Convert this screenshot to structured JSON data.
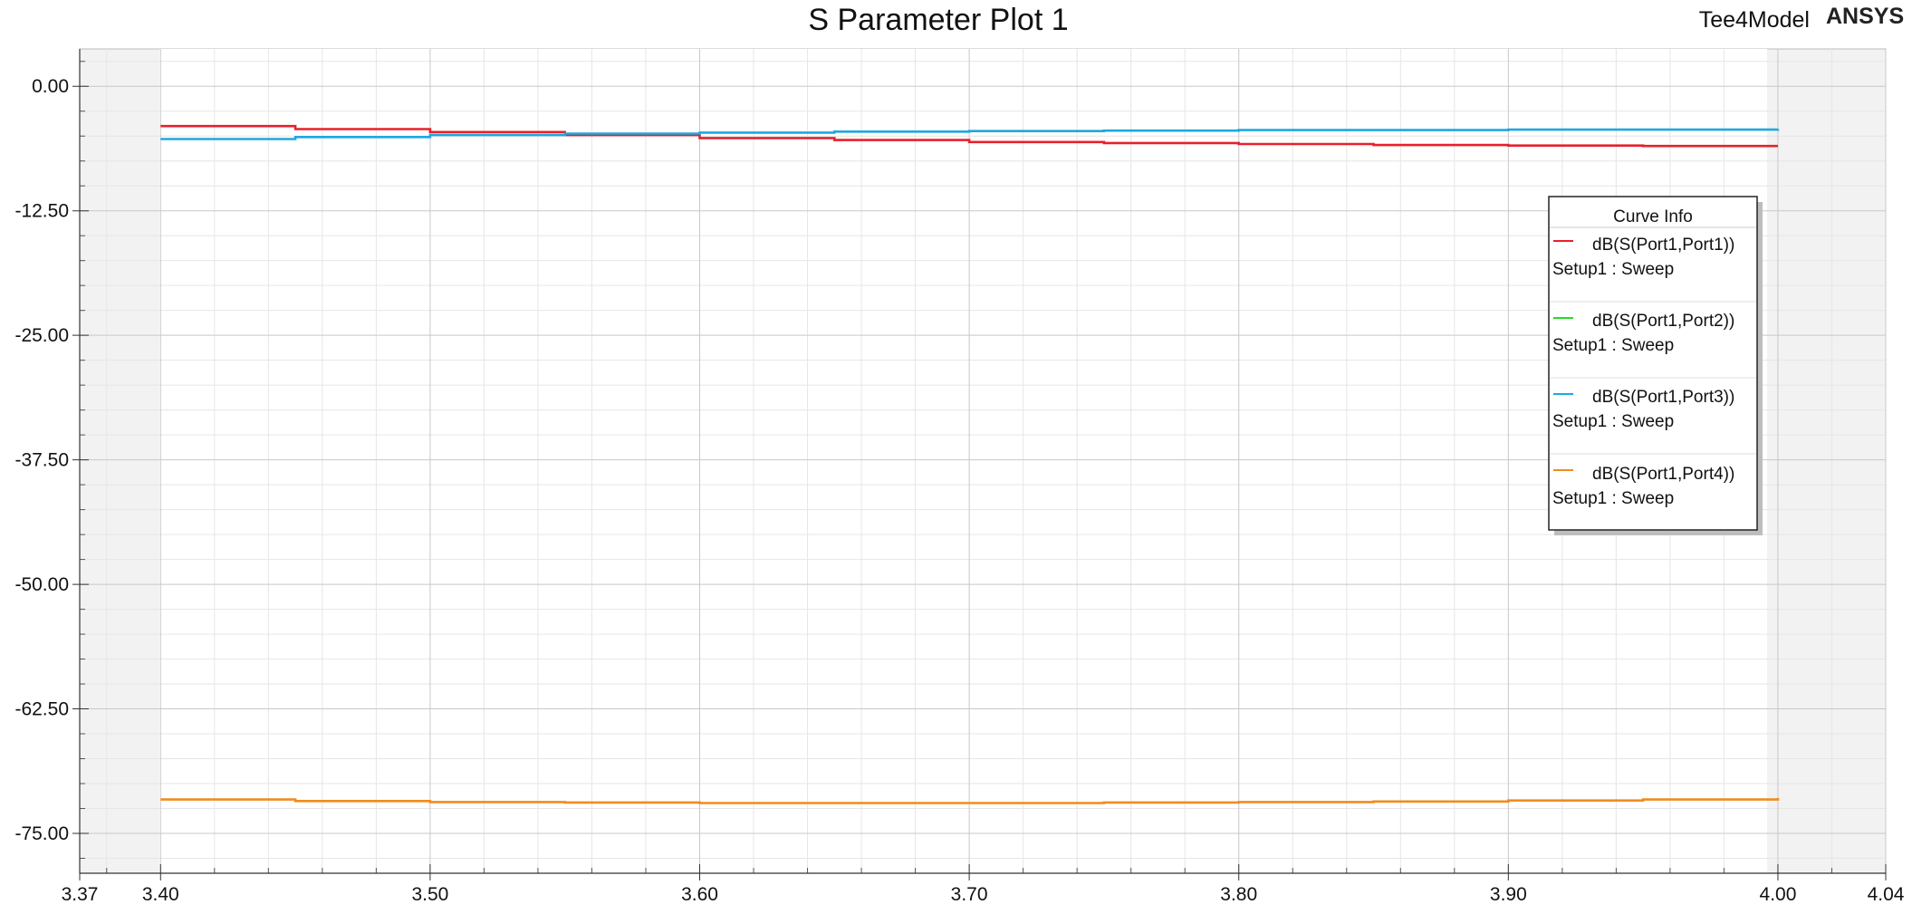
{
  "header": {
    "title": "S Parameter Plot 1",
    "design_name": "Tee4Model",
    "brand": "ANSYS"
  },
  "legend": {
    "title": "Curve Info",
    "entries": [
      {
        "name": "dB(S(Port1,Port1))",
        "sub": "Setup1 : Sweep",
        "color": "#e8202a"
      },
      {
        "name": "dB(S(Port1,Port2))",
        "sub": "Setup1 : Sweep",
        "color": "#22dd22"
      },
      {
        "name": "dB(S(Port1,Port3))",
        "sub": "Setup1 : Sweep",
        "color": "#1fa8e0"
      },
      {
        "name": "dB(S(Port1,Port4))",
        "sub": "Setup1 : Sweep",
        "color": "#f08c1e"
      }
    ]
  },
  "chart_data": {
    "type": "line",
    "title": "S Parameter Plot 1",
    "xlabel": "",
    "ylabel": "",
    "xlim": [
      3.37,
      4.04
    ],
    "ylim": [
      -79,
      3.75
    ],
    "x_ticks": [
      "3.37",
      "3.40",
      "3.50",
      "3.60",
      "3.70",
      "3.80",
      "3.90",
      "4.00",
      "4.04"
    ],
    "x_tick_values": [
      3.37,
      3.4,
      3.5,
      3.6,
      3.7,
      3.8,
      3.9,
      4.0,
      4.04
    ],
    "y_ticks": [
      "0.00",
      "-12.50",
      "-25.00",
      "-37.50",
      "-50.00",
      "-62.50",
      "-75.00"
    ],
    "y_tick_values": [
      0,
      -12.5,
      -25,
      -37.5,
      -50,
      -62.5,
      -75
    ],
    "data_range_x": [
      3.4,
      4.0
    ],
    "grid": true,
    "legend_position": "right",
    "series": [
      {
        "name": "dB(S(Port1,Port1))",
        "color": "#e8202a",
        "x": [
          3.4,
          3.45,
          3.5,
          3.55,
          3.6,
          3.65,
          3.7,
          3.75,
          3.8,
          3.85,
          3.9,
          3.95,
          4.0
        ],
        "y": [
          -4.0,
          -4.3,
          -4.6,
          -4.9,
          -5.2,
          -5.4,
          -5.6,
          -5.7,
          -5.8,
          -5.9,
          -5.95,
          -6.0,
          -6.0
        ]
      },
      {
        "name": "dB(S(Port1,Port3))",
        "color": "#1fa8e0",
        "x": [
          3.4,
          3.45,
          3.5,
          3.55,
          3.6,
          3.65,
          3.7,
          3.75,
          3.8,
          3.85,
          3.9,
          3.95,
          4.0
        ],
        "y": [
          -5.3,
          -5.1,
          -4.9,
          -4.75,
          -4.65,
          -4.55,
          -4.5,
          -4.45,
          -4.4,
          -4.4,
          -4.35,
          -4.35,
          -4.3
        ]
      },
      {
        "name": "dB(S(Port1,Port4))",
        "color": "#f08c1e",
        "x": [
          3.4,
          3.45,
          3.5,
          3.55,
          3.6,
          3.65,
          3.7,
          3.75,
          3.8,
          3.85,
          3.9,
          3.95,
          4.0
        ],
        "y": [
          -71.6,
          -71.75,
          -71.85,
          -71.9,
          -71.95,
          -71.95,
          -71.95,
          -71.9,
          -71.85,
          -71.8,
          -71.7,
          -71.6,
          -71.45
        ]
      }
    ]
  }
}
